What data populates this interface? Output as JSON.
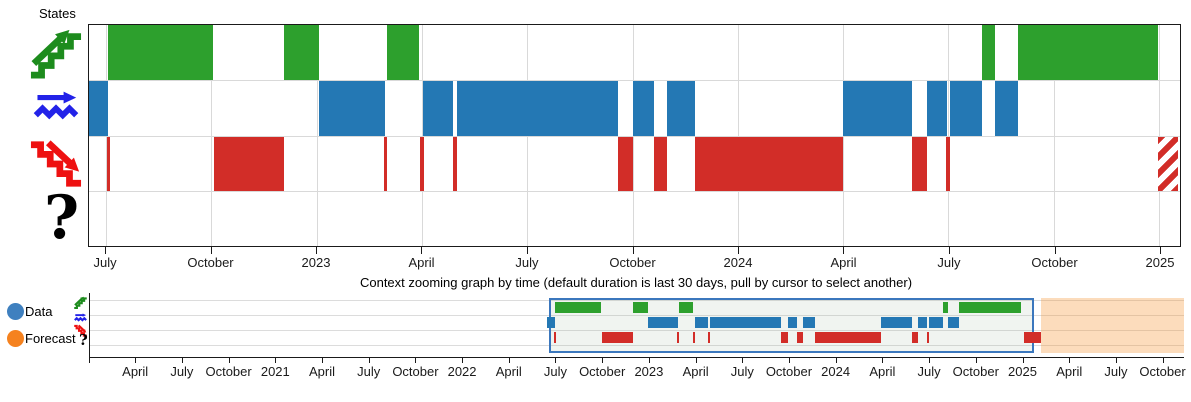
{
  "icons": {
    "unknown_glyph": "?"
  },
  "colors": {
    "bar_green": "#2da02d",
    "bar_blue": "#2478b4",
    "bar_red": "#d22d28",
    "icon_green": "#1d8c1d",
    "icon_blue": "#2222e8",
    "icon_red": "#ee1111",
    "legend_data": "#3f80bf",
    "legend_forecast": "#f5821f",
    "grid": "#d9d9d9",
    "axis": "#1a1a1a",
    "selection_border": "#3b77bd",
    "selection_fill": "rgba(160,185,160,0.16)",
    "forecast_fill": "rgba(247,148,51,0.33)",
    "hatch_red": "#d22d28"
  },
  "chart_data": [
    {
      "type": "bar",
      "subtype": "state-timeline",
      "title": "States",
      "x_range": [
        "2022-06-16",
        "2025-01-24"
      ],
      "grid": "on",
      "x_ticks": [
        {
          "label": "July",
          "pct": 1.56
        },
        {
          "label": "October",
          "pct": 11.21
        },
        {
          "label": "2023",
          "pct": 20.86
        },
        {
          "label": "April",
          "pct": 30.51
        },
        {
          "label": "July",
          "pct": 40.16
        },
        {
          "label": "October",
          "pct": 49.82
        },
        {
          "label": "2024",
          "pct": 59.47
        },
        {
          "label": "April",
          "pct": 69.12
        },
        {
          "label": "July",
          "pct": 78.77
        },
        {
          "label": "October",
          "pct": 88.43
        },
        {
          "label": "2025",
          "pct": 98.08
        }
      ],
      "rows": [
        {
          "state": "increasing",
          "icon": "trend-up-icon",
          "color": "#2da02d",
          "segments": [
            {
              "start": "2022-07-03",
              "end": "2022-10-02",
              "start_pct": 1.74,
              "end_pct": 11.34
            },
            {
              "start": "2022-12-03",
              "end": "2023-01-03",
              "start_pct": 17.84,
              "end_pct": 21.04
            },
            {
              "start": "2023-03-04",
              "end": "2023-04-01",
              "start_pct": 27.36,
              "end_pct": 30.28
            },
            {
              "start": "2024-08-04",
              "end": "2024-08-16",
              "start_pct": 81.88,
              "end_pct": 83.07
            },
            {
              "start": "2024-09-05",
              "end": "2025-01-05",
              "start_pct": 85.18,
              "end_pct": 97.99
            }
          ]
        },
        {
          "state": "steady",
          "icon": "trend-steady-icon",
          "color": "#2478b4",
          "segments": [
            {
              "start": "2022-06-16",
              "end": "2022-07-03",
              "start_pct": 0,
              "end_pct": 1.74
            },
            {
              "start": "2023-01-03",
              "end": "2023-03-02",
              "start_pct": 21.04,
              "end_pct": 27.17
            },
            {
              "start": "2023-04-04",
              "end": "2023-04-30",
              "start_pct": 30.65,
              "end_pct": 33.39
            },
            {
              "start": "2023-05-04",
              "end": "2023-09-21",
              "start_pct": 33.76,
              "end_pct": 48.49
            },
            {
              "start": "2023-10-04",
              "end": "2023-10-23",
              "start_pct": 49.86,
              "end_pct": 51.78
            },
            {
              "start": "2023-11-03",
              "end": "2023-11-27",
              "start_pct": 52.97,
              "end_pct": 55.54
            },
            {
              "start": "2024-04-04",
              "end": "2024-06-04",
              "start_pct": 69.08,
              "end_pct": 75.48
            },
            {
              "start": "2024-06-17",
              "end": "2024-07-05",
              "start_pct": 76.85,
              "end_pct": 78.68
            },
            {
              "start": "2024-07-08",
              "end": "2024-08-04",
              "start_pct": 78.96,
              "end_pct": 81.88
            },
            {
              "start": "2024-08-16",
              "end": "2024-09-05",
              "start_pct": 83.07,
              "end_pct": 85.18
            }
          ]
        },
        {
          "state": "decreasing",
          "icon": "trend-down-icon",
          "color": "#d22d28",
          "segments": [
            {
              "start": "2022-07-02",
              "end": "2022-07-04",
              "start_pct": 1.65,
              "end_pct": 1.92
            },
            {
              "start": "2022-10-03",
              "end": "2022-12-03",
              "start_pct": 11.44,
              "end_pct": 17.84
            },
            {
              "start": "2023-03-01",
              "end": "2023-03-04",
              "start_pct": 27.08,
              "end_pct": 27.36
            },
            {
              "start": "2023-04-01",
              "end": "2023-04-05",
              "start_pct": 30.37,
              "end_pct": 30.74
            },
            {
              "start": "2023-04-30",
              "end": "2023-05-04",
              "start_pct": 33.39,
              "end_pct": 33.76
            },
            {
              "start": "2023-09-21",
              "end": "2023-10-04",
              "start_pct": 48.49,
              "end_pct": 49.86
            },
            {
              "start": "2023-10-23",
              "end": "2023-11-03",
              "start_pct": 51.78,
              "end_pct": 52.97
            },
            {
              "start": "2023-11-27",
              "end": "2024-04-04",
              "start_pct": 55.54,
              "end_pct": 69.08
            },
            {
              "start": "2024-06-04",
              "end": "2024-06-17",
              "start_pct": 75.48,
              "end_pct": 76.85
            },
            {
              "start": "2024-07-04",
              "end": "2024-07-08",
              "start_pct": 78.59,
              "end_pct": 78.96
            },
            {
              "start": "2025-01-05",
              "end": "2025-01-22",
              "start_pct": 97.99,
              "end_pct": 99.82,
              "hatched": true,
              "forecast": true
            }
          ]
        },
        {
          "state": "unknown",
          "icon": "question-mark-icon",
          "color": "#000000",
          "segments": []
        }
      ]
    },
    {
      "type": "bar",
      "subtype": "context-timeline",
      "title": "Context zooming graph by time (default duration is last 30 days, pull by cursor to select another)",
      "x_range": [
        "2020-01-01",
        "2025-11-10"
      ],
      "legend": [
        {
          "label": "Data",
          "color": "#3f80bf"
        },
        {
          "label": "Forecast",
          "color": "#f5821f"
        }
      ],
      "selection": {
        "start": "2022-06-16",
        "end": "2025-01-22",
        "start_pct": 41.96,
        "end_pct": 86.29
      },
      "forecast_region": {
        "start": "2025-02-05",
        "end": "2025-11-10",
        "start_pct": 86.93,
        "end_pct": 100
      },
      "x_ticks": [
        {
          "label": "",
          "pct": 0
        },
        {
          "label": "April",
          "pct": 4.22
        },
        {
          "label": "July",
          "pct": 8.49
        },
        {
          "label": "October",
          "pct": 12.76
        },
        {
          "label": "2021",
          "pct": 17.03
        },
        {
          "label": "April",
          "pct": 21.3
        },
        {
          "label": "July",
          "pct": 25.57
        },
        {
          "label": "October",
          "pct": 29.84
        },
        {
          "label": "2022",
          "pct": 34.1
        },
        {
          "label": "April",
          "pct": 38.37
        },
        {
          "label": "July",
          "pct": 42.64
        },
        {
          "label": "October",
          "pct": 46.91
        },
        {
          "label": "2023",
          "pct": 51.18
        },
        {
          "label": "April",
          "pct": 55.45
        },
        {
          "label": "July",
          "pct": 59.72
        },
        {
          "label": "October",
          "pct": 63.98
        },
        {
          "label": "2024",
          "pct": 68.25
        },
        {
          "label": "April",
          "pct": 72.52
        },
        {
          "label": "July",
          "pct": 76.79
        },
        {
          "label": "October",
          "pct": 81.06
        },
        {
          "label": "2025",
          "pct": 85.33
        },
        {
          "label": "April",
          "pct": 89.6
        },
        {
          "label": "July",
          "pct": 93.87
        },
        {
          "label": "October",
          "pct": 98.13
        }
      ],
      "rows": [
        {
          "state": "increasing",
          "icon": "trend-up-icon",
          "color": "#2da02d",
          "segments": [
            {
              "start": "2022-07-03",
              "end": "2022-10-02",
              "start_pct": 42.49,
              "end_pct": 46.75
            },
            {
              "start": "2022-12-03",
              "end": "2023-01-03",
              "start_pct": 49.62,
              "end_pct": 51.03
            },
            {
              "start": "2023-03-04",
              "end": "2023-04-01",
              "start_pct": 53.82,
              "end_pct": 55.12
            },
            {
              "start": "2024-08-04",
              "end": "2024-08-16",
              "start_pct": 77.94,
              "end_pct": 78.46
            },
            {
              "start": "2024-09-05",
              "end": "2025-01-05",
              "start_pct": 79.4,
              "end_pct": 85.06
            }
          ]
        },
        {
          "state": "steady",
          "icon": "trend-steady-icon",
          "color": "#2478b4",
          "segments": [
            {
              "start": "2022-06-16",
              "end": "2022-07-03",
              "start_pct": 41.73,
              "end_pct": 42.49
            },
            {
              "start": "2023-01-03",
              "end": "2023-03-02",
              "start_pct": 51.03,
              "end_pct": 53.74
            },
            {
              "start": "2023-04-04",
              "end": "2023-04-30",
              "start_pct": 55.28,
              "end_pct": 56.5
            },
            {
              "start": "2023-05-04",
              "end": "2023-09-21",
              "start_pct": 56.65,
              "end_pct": 63.17
            },
            {
              "start": "2023-10-04",
              "end": "2023-10-23",
              "start_pct": 63.77,
              "end_pct": 64.63
            },
            {
              "start": "2023-11-03",
              "end": "2023-11-27",
              "start_pct": 65.16,
              "end_pct": 66.29
            },
            {
              "start": "2024-04-04",
              "end": "2024-06-04",
              "start_pct": 72.28,
              "end_pct": 75.11
            },
            {
              "start": "2024-06-17",
              "end": "2024-07-05",
              "start_pct": 75.71,
              "end_pct": 76.53
            },
            {
              "start": "2024-07-08",
              "end": "2024-08-04",
              "start_pct": 76.65,
              "end_pct": 77.94
            },
            {
              "start": "2024-08-16",
              "end": "2024-09-05",
              "start_pct": 78.46,
              "end_pct": 79.4
            }
          ]
        },
        {
          "state": "decreasing",
          "icon": "trend-down-icon",
          "color": "#d22d28",
          "segments": [
            {
              "start": "2022-07-02",
              "end": "2022-07-04",
              "start_pct": 42.45,
              "end_pct": 42.64
            },
            {
              "start": "2022-10-03",
              "end": "2022-12-03",
              "start_pct": 46.78,
              "end_pct": 49.62
            },
            {
              "start": "2023-03-01",
              "end": "2023-03-04",
              "start_pct": 53.7,
              "end_pct": 53.82
            },
            {
              "start": "2023-04-01",
              "end": "2023-04-05",
              "start_pct": 55.16,
              "end_pct": 55.32
            },
            {
              "start": "2023-04-30",
              "end": "2023-05-04",
              "start_pct": 56.5,
              "end_pct": 56.65
            },
            {
              "start": "2023-09-21",
              "end": "2023-10-04",
              "start_pct": 63.17,
              "end_pct": 63.77
            },
            {
              "start": "2023-10-23",
              "end": "2023-11-03",
              "start_pct": 64.63,
              "end_pct": 65.16
            },
            {
              "start": "2023-11-27",
              "end": "2024-04-04",
              "start_pct": 66.29,
              "end_pct": 72.28
            },
            {
              "start": "2024-06-04",
              "end": "2024-06-17",
              "start_pct": 75.11,
              "end_pct": 75.71
            },
            {
              "start": "2024-07-04",
              "end": "2024-07-08",
              "start_pct": 76.53,
              "end_pct": 76.65
            },
            {
              "start": "2025-01-05",
              "end": "2025-02-05",
              "start_pct": 85.37,
              "end_pct": 86.93
            }
          ]
        },
        {
          "state": "unknown",
          "icon": "question-mark-icon",
          "color": "#000000",
          "segments": []
        }
      ]
    }
  ]
}
